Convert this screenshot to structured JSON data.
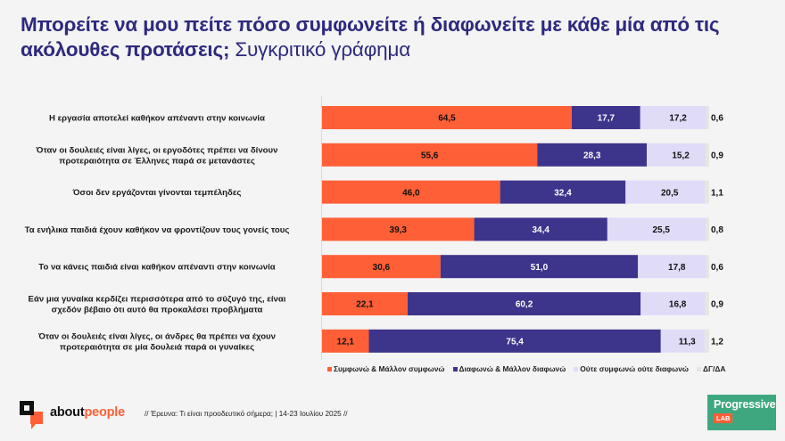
{
  "header": {
    "title_bold": "Μπορείτε να μου πείτε πόσο  συμφωνείτε ή διαφωνείτε με κάθε μία από τις ακόλουθες προτάσεις;",
    "title_sub": "Συγκριτικό γράφημα"
  },
  "colors": {
    "agree": "#ff5f36",
    "disagree": "#3d348b",
    "neutral": "#e0dcf8",
    "dkna": "#e8e6e2",
    "title": "#2e2a7e"
  },
  "chart_data": {
    "type": "bar",
    "orientation": "horizontal",
    "stacked": true,
    "title": "Μπορείτε να μου πείτε πόσο  συμφωνείτε ή διαφωνείτε με κάθε μία από τις ακόλουθες προτάσεις; Συγκριτικό γράφημα",
    "xlabel": "",
    "ylabel": "",
    "xlim": [
      0,
      100
    ],
    "grid": false,
    "legend_position": "bottom",
    "categories": [
      [
        "Η εργασία αποτελεί καθήκον απέναντι στην κοινωνία"
      ],
      [
        "Όταν οι δουλειές είναι λίγες, οι εργοδότες πρέπει να δίνουν",
        "προτεραιότητα σε Έλληνες παρά σε μετανάστες"
      ],
      [
        "Όσοι δεν εργάζονται γίνονται τεμπέληδες"
      ],
      [
        "Τα ενήλικα παιδιά έχουν καθήκον να φροντίζουν τους γονείς τους"
      ],
      [
        "Το να κάνεις παιδιά είναι καθήκον απέναντι στην κοινωνία"
      ],
      [
        "Εάν μια γυναίκα κερδίζει περισσότερα από το σύζυγό της, είναι",
        "σχεδόν βέβαιο ότι αυτό θα προκαλέσει προβλήματα"
      ],
      [
        "Όταν οι δουλειές είναι λίγες, οι άνδρες θα πρέπει να έχουν",
        "προτεραιότητα σε μία δουλειά παρά οι γυναίκες"
      ]
    ],
    "series": [
      {
        "name": "Συμφωνώ & Μάλλον συμφωνώ",
        "color_key": "agree",
        "values": [
          64.5,
          55.6,
          46.0,
          39.3,
          30.6,
          22.1,
          12.1
        ],
        "labels": [
          "64,5",
          "55,6",
          "46,0",
          "39,3",
          "30,6",
          "22,1",
          "12,1"
        ]
      },
      {
        "name": "Διαφωνώ & Μάλλον διαφωνώ",
        "color_key": "disagree",
        "values": [
          17.7,
          28.3,
          32.4,
          34.4,
          51.0,
          60.2,
          75.4
        ],
        "labels": [
          "17,7",
          "28,3",
          "32,4",
          "34,4",
          "51,0",
          "60,2",
          "75,4"
        ]
      },
      {
        "name": "Ούτε συμφωνώ ούτε διαφωνώ",
        "color_key": "neutral",
        "values": [
          17.2,
          15.2,
          20.5,
          25.5,
          17.8,
          16.8,
          11.3
        ],
        "labels": [
          "17,2",
          "15,2",
          "20,5",
          "25,5",
          "17,8",
          "16,8",
          "11,3"
        ]
      },
      {
        "name": "ΔΓ/ΔΑ",
        "color_key": "dkna",
        "values": [
          0.6,
          0.9,
          1.1,
          0.8,
          0.6,
          0.9,
          1.2
        ],
        "labels": [
          "0,6",
          "0,9",
          "1,1",
          "0,8",
          "0,6",
          "0,9",
          "1,2"
        ]
      }
    ]
  },
  "legend": [
    {
      "label": "Συμφωνώ & Μάλλον συμφωνώ",
      "color_key": "agree"
    },
    {
      "label": "Διαφωνώ & Μάλλον διαφωνώ",
      "color_key": "disagree"
    },
    {
      "label": "Ούτε συμφωνώ ούτε διαφωνώ",
      "color_key": "neutral"
    },
    {
      "label": "ΔΓ/ΔΑ",
      "color_key": "dkna"
    }
  ],
  "footer": {
    "logo_about": "about",
    "logo_people": "people",
    "note": "// Έρευνα: Τι είναι προοδευτικό σήμερα; | 14-23 Ιουλίου 2025 //",
    "partner_name": "Progressive",
    "partner_tag": "LAB"
  }
}
